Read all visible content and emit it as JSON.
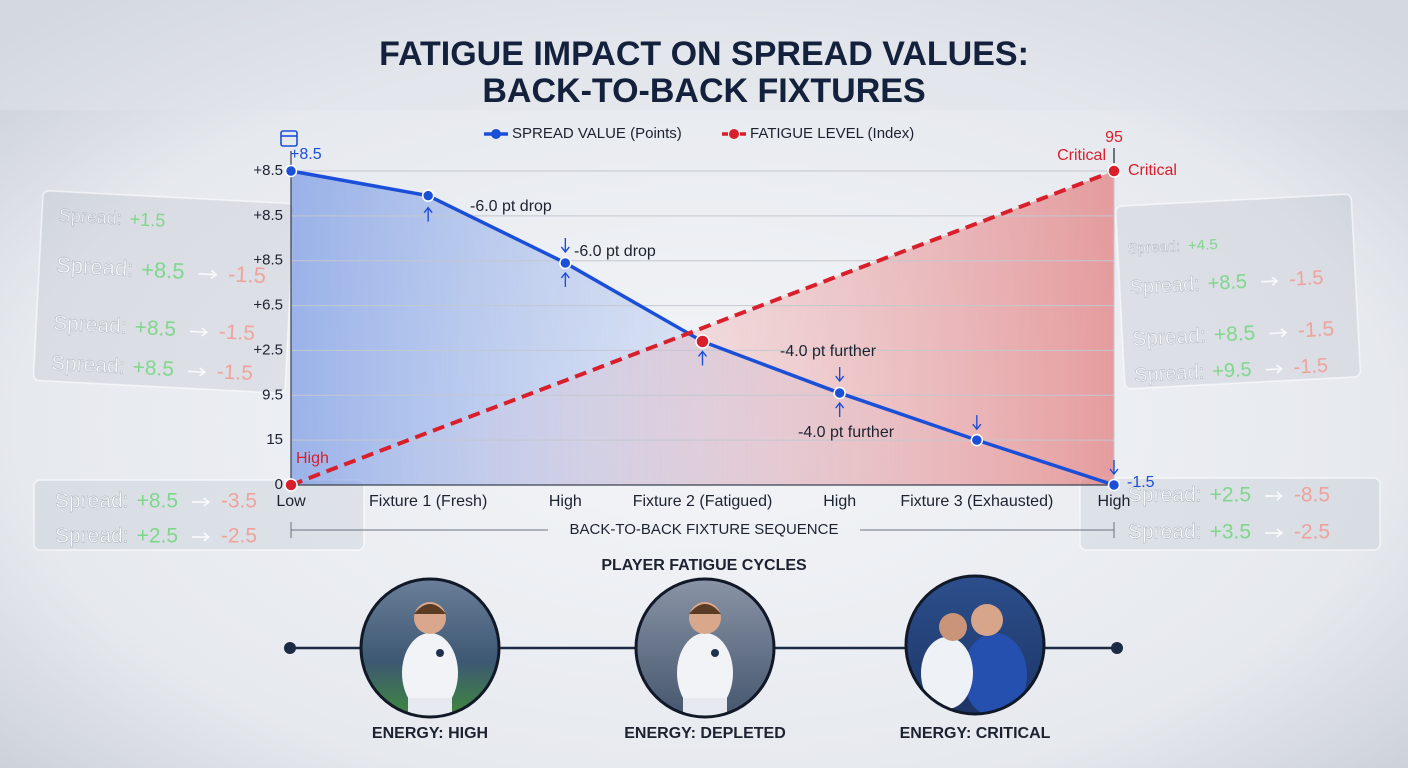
{
  "chart_data": {
    "type": "line",
    "title": "FATIGUE IMPACT ON SPREAD VALUES:",
    "subtitle": "BACK-TO-BACK FIXTURES",
    "x_label": "BACK-TO-BACK FIXTURE SEQUENCE",
    "categories": [
      "Low",
      "Fixture 1 (Fresh)",
      "High",
      "Fixture 2 (Fatigued)",
      "High",
      "Fixture 3 (Exhausted)",
      "High"
    ],
    "series": [
      {
        "name": "SPREAD VALUE (Points)",
        "color": "#1c4fd8",
        "values": [
          7,
          6.45,
          4.95,
          3.2,
          2.05,
          1,
          0
        ]
      },
      {
        "name": "FATIGUE LEVEL (Index)",
        "color": "#d91f2b",
        "dashed": true,
        "values": [
          0,
          1.17,
          2.33,
          3.5,
          4.67,
          5.83,
          7
        ]
      }
    ],
    "ylim": [
      0,
      7
    ],
    "yticks": [
      0,
      {
        "value": 1,
        "label": "15"
      },
      {
        "value": 2,
        "label": "9.5"
      },
      {
        "value": 3,
        "label": "+2.5"
      },
      {
        "value": 4,
        "label": "+6.5"
      },
      {
        "value": 5,
        "label": "+8.5"
      },
      {
        "value": 6,
        "label": "+8.5"
      },
      {
        "value": 7,
        "label": "+8.5"
      }
    ],
    "grid": true,
    "legend": "top",
    "annotations": [
      {
        "text": "+8.5"
      },
      {
        "text": "95"
      },
      {
        "text": "Critical"
      },
      {
        "text": "Critical"
      },
      {
        "text": "High"
      },
      {
        "text": "-6.0 pt drop"
      },
      {
        "text": "-6.0 pt drop"
      },
      {
        "text": "-4.0 pt further"
      },
      {
        "text": "-4.0 pt further"
      },
      {
        "text": "-1.5"
      }
    ]
  },
  "background_panels": [
    {
      "rows": [
        {
          "label": "Spread:",
          "from": "+1.5"
        },
        {
          "label": "Spread:",
          "from": "+8.5",
          "to": "-1.5"
        },
        {
          "label": "Spread:",
          "from": "+8.5",
          "to": "-1.5"
        },
        {
          "label": "Spread:",
          "from": "+8.5",
          "to": "-1.5"
        }
      ]
    },
    {
      "rows": [
        {
          "label": "Spread:",
          "from": "+4.5"
        },
        {
          "label": "Spread:",
          "from": "+8.5",
          "to": "-1.5"
        },
        {
          "label": "Spread:",
          "from": "+8.5",
          "to": "-1.5"
        },
        {
          "label": "Spread:",
          "from": "+9.5",
          "to": "-1.5"
        }
      ]
    },
    {
      "rows": [
        {
          "label": "Spread:",
          "from": "+8.5",
          "to": "-3.5"
        },
        {
          "label": "Spread:",
          "from": "+2.5",
          "to": "-2.5"
        }
      ]
    },
    {
      "rows": [
        {
          "label": "Spread:",
          "from": "+2.5",
          "to": "-8.5"
        },
        {
          "label": "Spread:",
          "from": "+3.5",
          "to": "-2.5"
        }
      ]
    }
  ],
  "fatigue_cycles": {
    "title": "PLAYER FATIGUE CYCLES",
    "players": [
      {
        "label": "ENERGY: HIGH"
      },
      {
        "label": "ENERGY: DEPLETED"
      },
      {
        "label": "ENERGY: CRITICAL"
      }
    ]
  }
}
